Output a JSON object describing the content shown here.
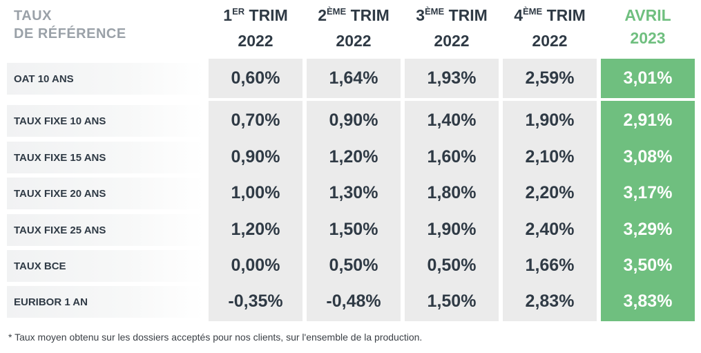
{
  "chart_data": {
    "type": "table",
    "corner_label": [
      "TAUX",
      "DE RÉFÉRENCE"
    ],
    "columns": [
      {
        "num": "1",
        "sup": "ER",
        "word": "TRIM",
        "year": "2022",
        "highlight": false
      },
      {
        "num": "2",
        "sup": "ÈME",
        "word": "TRIM",
        "year": "2022",
        "highlight": false
      },
      {
        "num": "3",
        "sup": "ÈME",
        "word": "TRIM",
        "year": "2022",
        "highlight": false
      },
      {
        "num": "4",
        "sup": "ÈME",
        "word": "TRIM",
        "year": "2022",
        "highlight": false
      },
      {
        "num": "",
        "sup": "",
        "word": "AVRIL",
        "year": "2023",
        "highlight": true
      }
    ],
    "rows": [
      {
        "label": "OAT 10 ANS",
        "values": [
          "0,60%",
          "1,64%",
          "1,93%",
          "2,59%",
          "3,01%"
        ]
      },
      {
        "label": "TAUX FIXE 10 ANS",
        "values": [
          "0,70%",
          "0,90%",
          "1,40%",
          "1,90%",
          "2,91%"
        ]
      },
      {
        "label": "TAUX FIXE 15 ANS",
        "values": [
          "0,90%",
          "1,20%",
          "1,60%",
          "2,10%",
          "3,08%"
        ]
      },
      {
        "label": "TAUX FIXE 20 ANS",
        "values": [
          "1,00%",
          "1,30%",
          "1,80%",
          "2,20%",
          "3,17%"
        ]
      },
      {
        "label": "TAUX FIXE 25 ANS",
        "values": [
          "1,20%",
          "1,50%",
          "1,90%",
          "2,40%",
          "3,29%"
        ]
      },
      {
        "label": "TAUX BCE",
        "values": [
          "0,00%",
          "0,50%",
          "0,50%",
          "1,66%",
          "3,50%"
        ]
      },
      {
        "label": "EURIBOR 1 AN",
        "values": [
          "-0,35%",
          "-0,48%",
          "1,50%",
          "2,83%",
          "3,83%"
        ]
      }
    ],
    "footnote": "* Taux moyen obtenu sur les dossiers acceptés pour nos clients, sur l'ensemble de la production.",
    "colors": {
      "cell": "#ebebeb",
      "highlight": "#6fbf7f",
      "text": "#2f3a45",
      "muted": "#9aa1a8"
    }
  }
}
